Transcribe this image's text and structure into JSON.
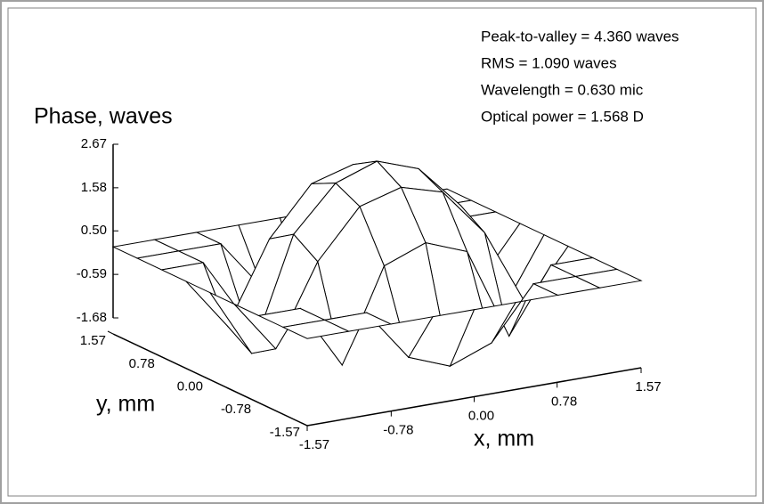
{
  "chart_data": {
    "type": "surface",
    "annotations": [
      "Peak-to-valley = 4.360 waves",
      "RMS = 1.090 waves",
      "Wavelength = 0.630 mic",
      "Optical power = 1.568 D"
    ],
    "zlabel": "Phase, waves",
    "xlabel": "x, mm",
    "ylabel": "y, mm",
    "xlim": [
      -1.57,
      1.57
    ],
    "ylim": [
      -1.57,
      1.57
    ],
    "zlim": [
      -1.68,
      2.67
    ],
    "xticks": [
      -1.57,
      -0.78,
      {
        "value": 0,
        "label": "0.00"
      },
      0.78,
      1.57
    ],
    "yticks": [
      -1.57,
      -0.78,
      {
        "value": 0,
        "label": "0.00"
      },
      0.78,
      1.57
    ],
    "zticks": [
      -1.68,
      -0.59,
      {
        "value": 0.5,
        "label": "0.50"
      },
      1.58,
      2.67
    ],
    "x": [
      -1.57,
      -1.18,
      -0.785,
      -0.39,
      0,
      0.39,
      0.785,
      1.18,
      1.57
    ],
    "y": [
      -1.57,
      -1.18,
      -0.785,
      -0.39,
      0,
      0.39,
      0.785,
      1.18,
      1.57
    ],
    "z": [
      [
        0.1,
        0.1,
        0.1,
        0.1,
        0.1,
        0.1,
        0.1,
        0.1,
        0.1
      ],
      [
        0.1,
        0.1,
        0.1,
        -1.2,
        -1.6,
        -1.2,
        0.1,
        0.1,
        0.1
      ],
      [
        0.1,
        0.1,
        -1.5,
        0.8,
        1.2,
        0.8,
        -1.5,
        0.1,
        0.1
      ],
      [
        0.1,
        -1.2,
        0.8,
        2.0,
        2.3,
        2.0,
        0.8,
        -1.2,
        0.1
      ],
      [
        0.1,
        -1.6,
        1.2,
        2.3,
        2.67,
        2.3,
        1.2,
        -1.6,
        0.1
      ],
      [
        0.1,
        -1.2,
        0.8,
        2.0,
        2.3,
        2.0,
        0.8,
        -1.2,
        0.1
      ],
      [
        0.1,
        0.1,
        -1.5,
        0.8,
        1.2,
        0.8,
        -1.5,
        0.1,
        0.1
      ],
      [
        0.1,
        0.1,
        0.1,
        -1.2,
        -1.6,
        -1.2,
        0.1,
        0.1,
        0.1
      ],
      [
        0.1,
        0.1,
        0.1,
        0.1,
        0.1,
        0.1,
        0.1,
        0.1,
        0.1
      ]
    ],
    "color": "#ffffff",
    "edgecolor": "#000000"
  }
}
